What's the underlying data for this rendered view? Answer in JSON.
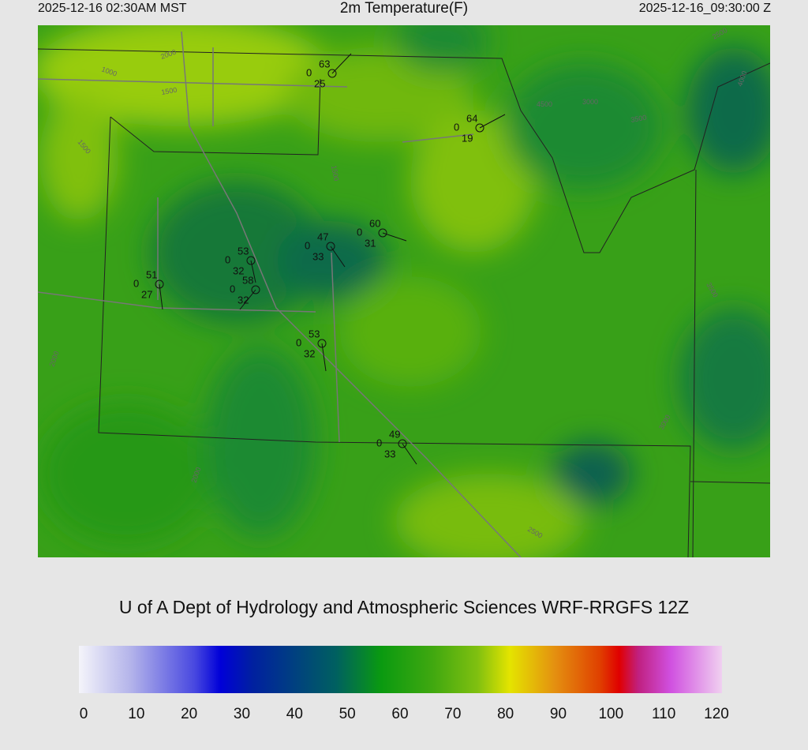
{
  "header": {
    "local_time": "2025-12-16 02:30AM MST",
    "title": "2m Temperature(F)",
    "valid_time": "2025-12-16_09:30:00 Z"
  },
  "stations": [
    {
      "temperature": 63,
      "cloud": 0,
      "dewpoint": 25
    },
    {
      "temperature": 64,
      "cloud": 0,
      "dewpoint": 19
    },
    {
      "temperature": 60,
      "cloud": 0,
      "dewpoint": 31
    },
    {
      "temperature": 47,
      "cloud": 0,
      "dewpoint": 33
    },
    {
      "temperature": 53,
      "cloud": 0,
      "dewpoint": 32
    },
    {
      "temperature": 58,
      "cloud": 0,
      "dewpoint": 32
    },
    {
      "temperature": 51,
      "cloud": 0,
      "dewpoint": 27
    },
    {
      "temperature": 53,
      "cloud": 0,
      "dewpoint": 32
    },
    {
      "temperature": 49,
      "cloud": 0,
      "dewpoint": 33
    }
  ],
  "contour_labels": [
    "1000",
    "1500",
    "1500",
    "1500",
    "2000",
    "2500",
    "3000",
    "3500",
    "4000",
    "4500",
    "2000",
    "2000",
    "2500",
    "3000",
    "3500"
  ],
  "footer": "U of A Dept of Hydrology and Atmospheric Sciences WRF-RRGFS 12Z",
  "colorbar": {
    "ticks": [
      0,
      10,
      20,
      30,
      40,
      50,
      60,
      70,
      80,
      90,
      100,
      110,
      120
    ]
  }
}
